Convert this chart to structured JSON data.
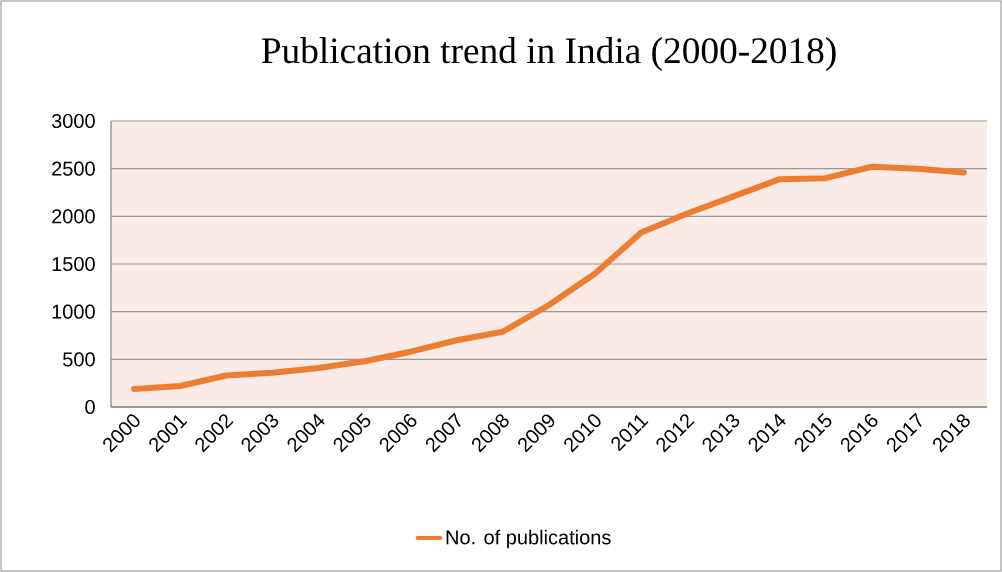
{
  "chart_data": {
    "type": "line",
    "title": "Publication trend in India (2000-2018)",
    "categories": [
      "2000",
      "2001",
      "2002",
      "2003",
      "2004",
      "2005",
      "2006",
      "2007",
      "2008",
      "2009",
      "2010",
      "2011",
      "2012",
      "2013",
      "2014",
      "2015",
      "2016",
      "2017",
      "2018"
    ],
    "series": [
      {
        "name": "No. of publications",
        "color": "#ed7d31",
        "values": [
          190,
          220,
          330,
          360,
          410,
          480,
          580,
          700,
          790,
          1070,
          1400,
          1830,
          2030,
          2210,
          2390,
          2400,
          2520,
          2500,
          2460
        ]
      }
    ],
    "ylim": [
      0,
      3000
    ],
    "yticks": [
      0,
      500,
      1000,
      1500,
      2000,
      2500,
      3000
    ],
    "grid": "y",
    "legend": "bottom",
    "marker": "none",
    "line_style": "solid"
  }
}
